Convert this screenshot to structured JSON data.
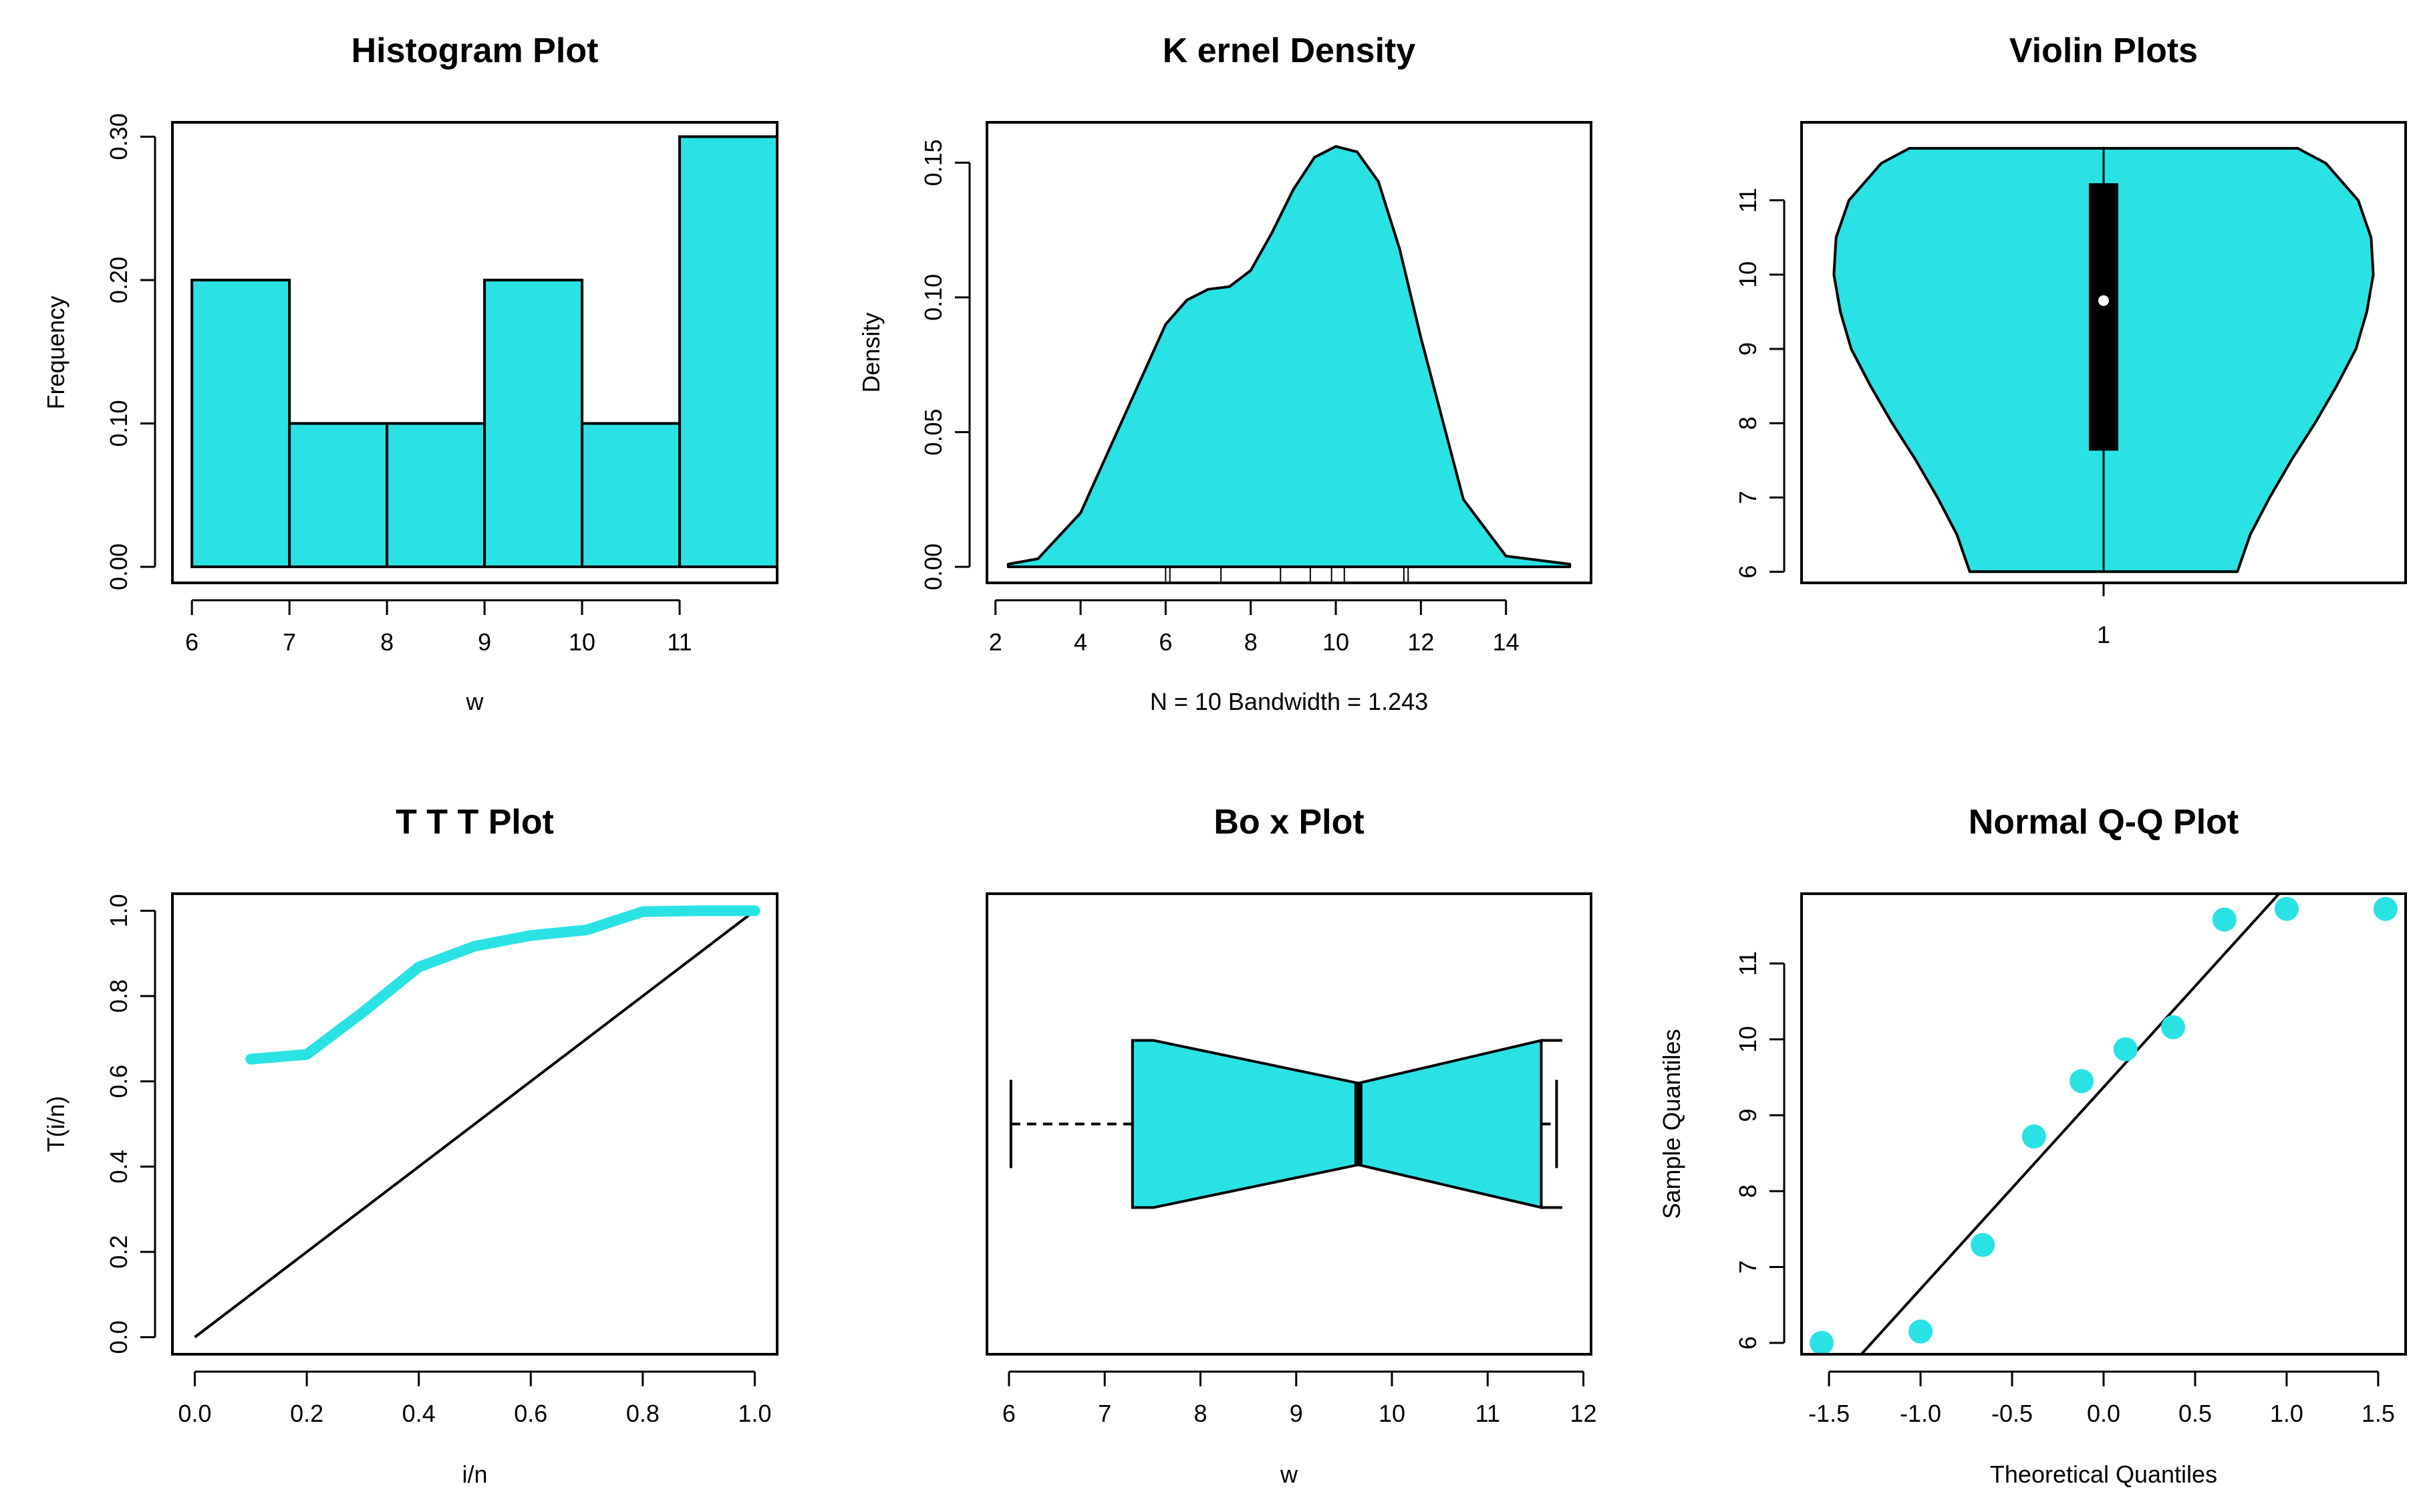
{
  "colors": {
    "fill": "#2ae2e4",
    "stroke": "#000000",
    "background": "#ffffff"
  },
  "chart_data": [
    {
      "id": "histogram",
      "type": "bar",
      "title": "Histogram Plot",
      "xlabel": "w",
      "ylabel": "Frequency",
      "bins": [
        [
          6,
          7
        ],
        [
          7,
          8
        ],
        [
          8,
          9
        ],
        [
          9,
          10
        ],
        [
          10,
          11
        ],
        [
          11,
          12
        ]
      ],
      "values": [
        0.2,
        0.1,
        0.1,
        0.2,
        0.1,
        0.3
      ],
      "xlim": [
        5.8,
        12
      ],
      "ylim": [
        0,
        0.31
      ],
      "xticks": [
        6,
        7,
        8,
        9,
        10,
        11
      ],
      "xtick_labels": [
        "6",
        "7",
        "8",
        "9",
        "10",
        "11"
      ],
      "yticks": [
        0,
        0.1,
        0.2,
        0.3
      ],
      "ytick_labels": [
        "0.00",
        "0.10",
        "0.20",
        "0.30"
      ]
    },
    {
      "id": "kernel-density",
      "type": "area",
      "title": "K ernel Density",
      "xlabel": "N = 10   Bandwidth = 1.243",
      "ylabel": "Density",
      "x": [
        2.3,
        3,
        4,
        5,
        6,
        6.5,
        7,
        7.5,
        8,
        8.5,
        9,
        9.5,
        10,
        10.5,
        11,
        11.5,
        12,
        13,
        14,
        15.5
      ],
      "y": [
        0.001,
        0.003,
        0.02,
        0.055,
        0.09,
        0.099,
        0.103,
        0.104,
        0.11,
        0.124,
        0.14,
        0.152,
        0.156,
        0.154,
        0.143,
        0.118,
        0.085,
        0.025,
        0.004,
        0.001
      ],
      "rug": [
        6.0,
        6.1,
        7.3,
        8.7,
        9.4,
        9.9,
        10.2,
        11.6,
        11.7
      ],
      "xlim": [
        1.8,
        16
      ],
      "ylim": [
        0,
        0.16
      ],
      "xticks": [
        2,
        4,
        6,
        8,
        10,
        12,
        14
      ],
      "xtick_labels": [
        "2",
        "4",
        "6",
        "8",
        "10",
        "12",
        "14"
      ],
      "yticks": [
        0,
        0.05,
        0.1,
        0.15
      ],
      "ytick_labels": [
        "0.00",
        "0.05",
        "0.10",
        "0.15"
      ]
    },
    {
      "id": "violin",
      "type": "violin",
      "title": "Violin Plots",
      "xlabel": "",
      "ylabel": "",
      "category": "1",
      "profile_y": [
        6,
        6.5,
        7,
        7.5,
        8,
        8.5,
        9,
        9.5,
        10,
        10.5,
        11,
        11.5,
        11.7
      ],
      "profile_halfwidth": [
        0.62,
        0.68,
        0.77,
        0.87,
        0.98,
        1.08,
        1.17,
        1.22,
        1.25,
        1.24,
        1.18,
        1.03,
        0.9
      ],
      "q1": 7.63,
      "median": 9.65,
      "q3": 11.23,
      "min": 6.0,
      "max": 11.72,
      "xlim": [
        -0.4,
        2.4
      ],
      "ylim": [
        5.85,
        12.05
      ],
      "yticks": [
        6,
        7,
        8,
        9,
        10,
        11
      ],
      "ytick_labels": [
        "6",
        "7",
        "8",
        "9",
        "10",
        "11"
      ]
    },
    {
      "id": "ttt",
      "type": "line",
      "title": "T T T Plot",
      "xlabel": "i/n",
      "ylabel": "T(i/n)",
      "series": [
        {
          "name": "TTT",
          "x": [
            0.1,
            0.2,
            0.3,
            0.4,
            0.5,
            0.6,
            0.7,
            0.8,
            0.9,
            1.0
          ],
          "y": [
            0.652,
            0.663,
            0.762,
            0.868,
            0.917,
            0.942,
            0.955,
            0.998,
            1.0,
            1.0
          ]
        },
        {
          "name": "diagonal",
          "x": [
            0,
            1
          ],
          "y": [
            0,
            1
          ]
        }
      ],
      "xlim": [
        -0.04,
        1.04
      ],
      "ylim": [
        -0.04,
        1.04
      ],
      "xticks": [
        0,
        0.2,
        0.4,
        0.6,
        0.8,
        1.0
      ],
      "xtick_labels": [
        "0.0",
        "0.2",
        "0.4",
        "0.6",
        "0.8",
        "1.0"
      ],
      "yticks": [
        0,
        0.2,
        0.4,
        0.6,
        0.8,
        1.0
      ],
      "ytick_labels": [
        "0.0",
        "0.2",
        "0.4",
        "0.6",
        "0.8",
        "1.0"
      ]
    },
    {
      "id": "boxplot",
      "type": "box",
      "title": "Bo x Plot",
      "xlabel": "w",
      "ylabel": "",
      "min": 6.02,
      "q1": 7.29,
      "median": 9.65,
      "q3": 11.56,
      "max": 11.72,
      "notch_low": 7.51,
      "notch_high": 11.78,
      "xlim": [
        5.77,
        12.08
      ],
      "xticks": [
        6,
        7,
        8,
        9,
        10,
        11,
        12
      ],
      "xtick_labels": [
        "6",
        "7",
        "8",
        "9",
        "10",
        "11",
        "12"
      ]
    },
    {
      "id": "qq",
      "type": "scatter",
      "title": "Normal Q-Q Plot",
      "xlabel": "Theoretical Quantiles",
      "ylabel": "Sample Quantiles",
      "x": [
        -1.54,
        -1.0,
        -0.66,
        -0.38,
        -0.12,
        0.12,
        0.38,
        0.66,
        1.0,
        1.54
      ],
      "y": [
        6.0,
        6.15,
        7.29,
        8.72,
        9.45,
        9.87,
        10.16,
        11.58,
        11.72,
        11.72
      ],
      "line": {
        "intercept": 9.37,
        "slope": 2.66
      },
      "xlim": [
        -1.65,
        1.65
      ],
      "ylim": [
        5.85,
        11.92
      ],
      "xticks": [
        -1.5,
        -1.0,
        -0.5,
        0,
        0.5,
        1.0,
        1.5
      ],
      "xtick_labels": [
        "-1.5",
        "-1.0",
        "-0.5",
        "0.0",
        "0.5",
        "1.0",
        "1.5"
      ],
      "yticks": [
        6,
        7,
        8,
        9,
        10,
        11
      ],
      "ytick_labels": [
        "6",
        "7",
        "8",
        "9",
        "10",
        "11"
      ]
    }
  ]
}
